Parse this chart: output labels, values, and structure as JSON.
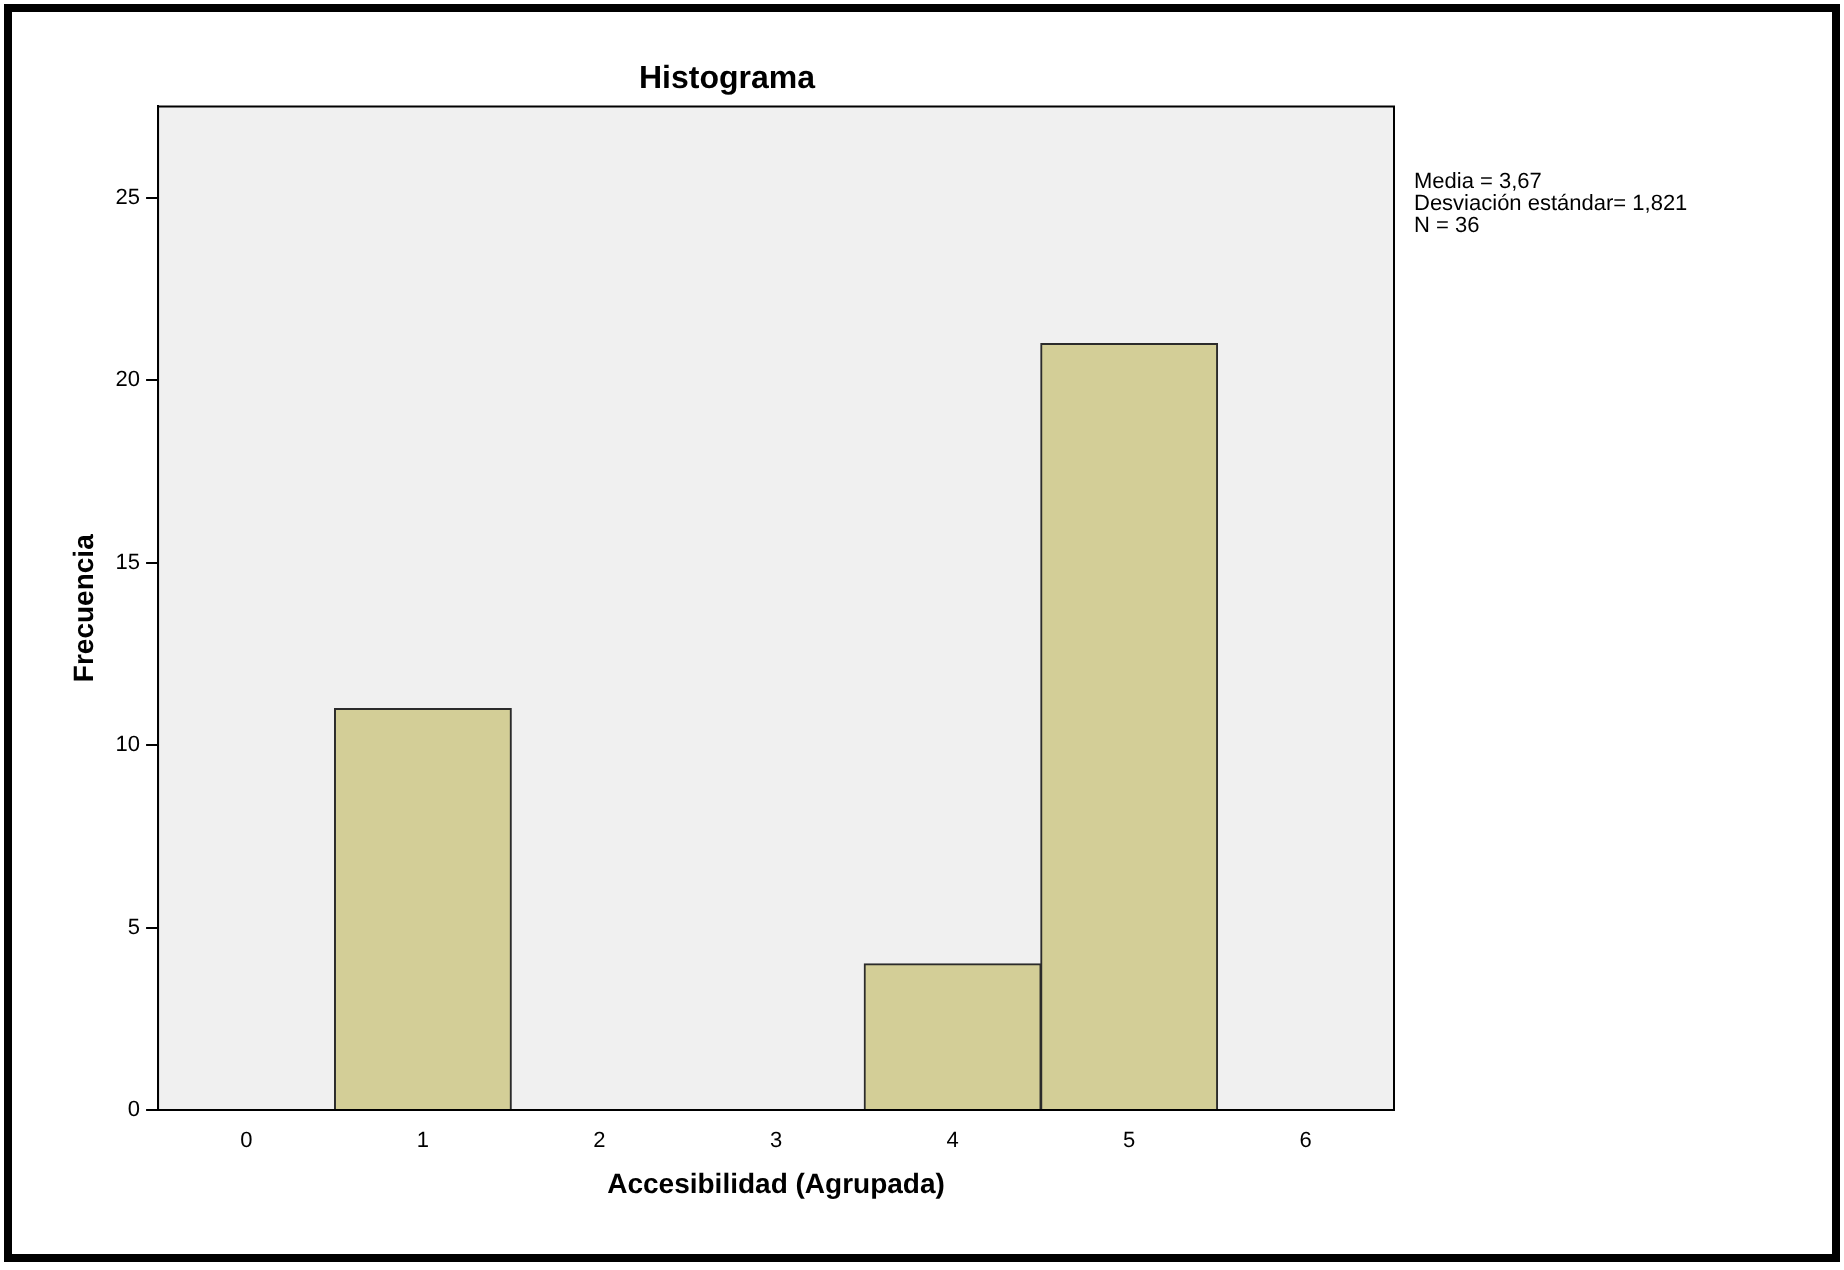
{
  "chart_data": {
    "type": "histogram",
    "title": "Histograma",
    "xlabel": "Accesibilidad (Agrupada)",
    "ylabel": "Frecuencia",
    "bins": [
      0.5,
      1.5,
      2.5,
      3.5,
      4.5,
      5.5
    ],
    "values": [
      11,
      0,
      0,
      4,
      21
    ],
    "color": "#d3ce97",
    "xlim": [
      -0.5,
      6.5
    ],
    "xticks": [
      0,
      1,
      2,
      3,
      4,
      5,
      6
    ],
    "ylim": [
      0,
      27.5
    ],
    "yticks": [
      0,
      5,
      10,
      15,
      20,
      25
    ],
    "grid": false,
    "legend": false,
    "annotations": [
      "Media = 3,67",
      "Desviación estándar= 1,821",
      "N = 36"
    ]
  }
}
